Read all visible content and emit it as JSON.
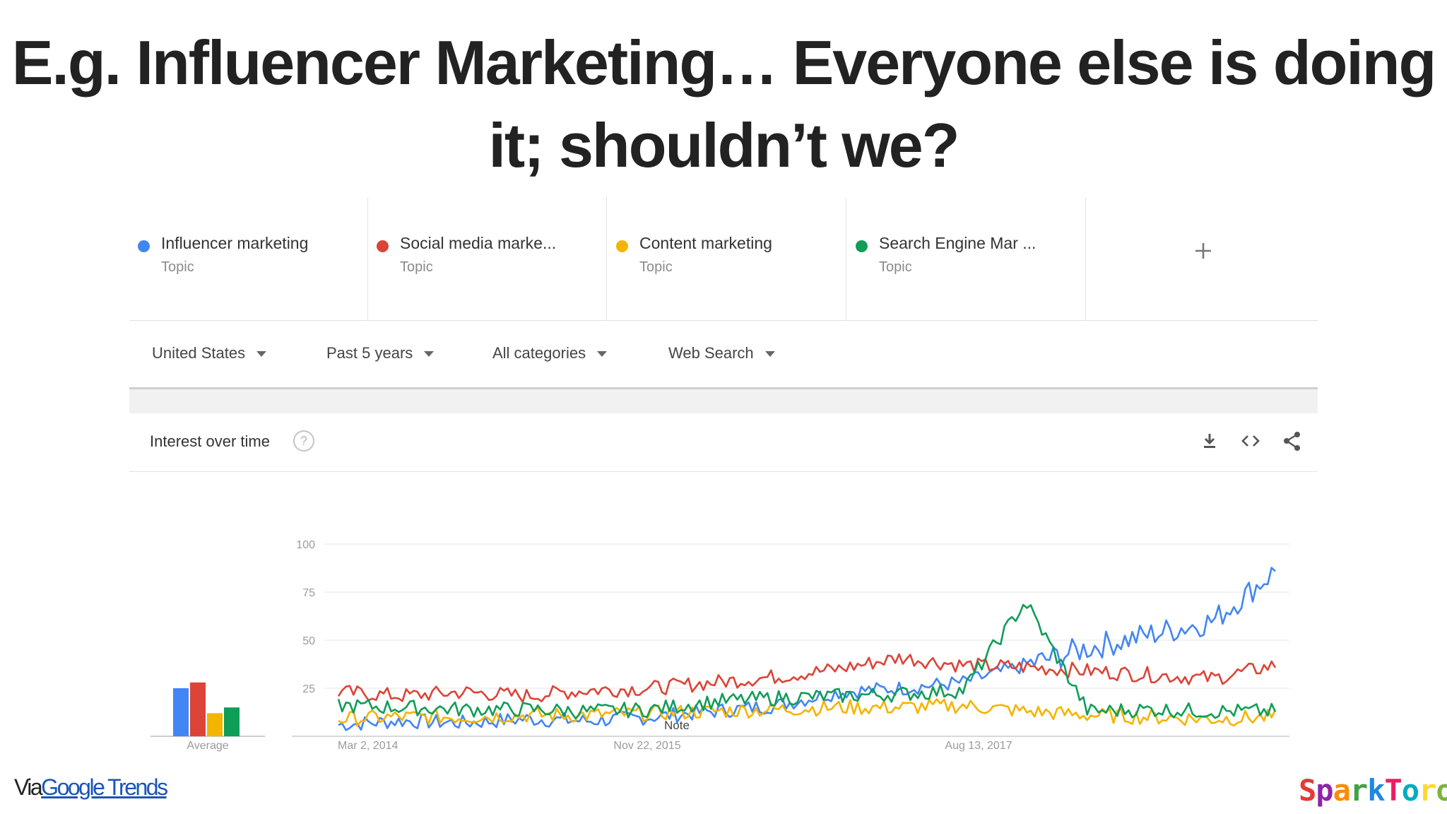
{
  "slide": {
    "title_line1": "E.g. Influencer Marketing… Everyone else is doing",
    "title_line2": "it; shouldn’t we?"
  },
  "terms": [
    {
      "name": "Influencer marketing",
      "type": "Topic",
      "color": "#4285f4"
    },
    {
      "name": "Social media marke...",
      "type": "Topic",
      "color": "#db4437"
    },
    {
      "name": "Content marketing",
      "type": "Topic",
      "color": "#f4b400"
    },
    {
      "name": "Search Engine Mar  ...",
      "type": "Topic",
      "color": "#0f9d58"
    }
  ],
  "add_term_icon": "plus-icon",
  "filters": {
    "region": "United States",
    "time": "Past 5 years",
    "category": "All categories",
    "search_type": "Web Search"
  },
  "interest": {
    "title": "Interest over time",
    "help_symbol": "?",
    "icons": [
      "download-icon",
      "embed-icon",
      "share-icon"
    ]
  },
  "chart_data": {
    "type": "line",
    "ylim": [
      0,
      100
    ],
    "y_ticks": [
      "100",
      "75",
      "50",
      "25"
    ],
    "x_tick_labels": [
      "Mar 2, 2014",
      "Nov 22, 2015",
      "Aug 13, 2017"
    ],
    "annotation": "Note",
    "average": {
      "label": "Average",
      "values": [
        {
          "series": "Influencer marketing",
          "value": 25
        },
        {
          "series": "Social media marke...",
          "value": 28
        },
        {
          "series": "Content marketing",
          "value": 12
        },
        {
          "series": "Search Engine Mar  ...",
          "value": 15
        }
      ]
    },
    "x": [
      "2014-03",
      "2014-07",
      "2014-11",
      "2015-03",
      "2015-07",
      "2015-11",
      "2016-03",
      "2016-07",
      "2016-11",
      "2017-03",
      "2017-07",
      "2017-11",
      "2018-03",
      "2018-07",
      "2018-11",
      "2019-01"
    ],
    "series": [
      {
        "name": "Influencer marketing",
        "color": "#4285f4",
        "values": [
          6,
          8,
          7,
          9,
          8,
          10,
          13,
          16,
          23,
          25,
          28,
          37,
          46,
          53,
          60,
          86
        ]
      },
      {
        "name": "Social media marke...",
        "color": "#db4437",
        "values": [
          23,
          21,
          23,
          21,
          24,
          25,
          28,
          31,
          35,
          41,
          37,
          36,
          34,
          32,
          30,
          37
        ]
      },
      {
        "name": "Content marketing",
        "color": "#f4b400",
        "values": [
          9,
          10,
          10,
          11,
          11,
          12,
          13,
          14,
          15,
          15,
          16,
          13,
          11,
          10,
          9,
          10
        ]
      },
      {
        "name": "Search Engine Mar  ...",
        "color": "#0f9d58",
        "values": [
          16,
          15,
          14,
          14,
          13,
          14,
          18,
          20,
          21,
          22,
          24,
          70,
          13,
          14,
          13,
          13
        ]
      }
    ]
  },
  "footer": {
    "via_text": "Via",
    "link_text": "Google Trends",
    "logo_text": "SparkToro",
    "logo_colors": [
      "#e53935",
      "#8e24aa",
      "#fb8c00",
      "#43a047",
      "#1e88e5",
      "#e91e63",
      "#00acc1",
      "#fdd835",
      "#7cb342"
    ]
  }
}
